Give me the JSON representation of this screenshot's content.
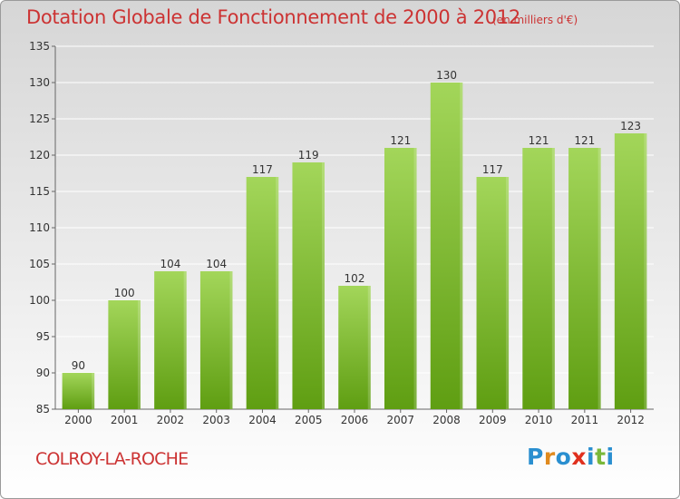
{
  "title": "Dotation Globale de Fonctionnement de 2000 à 2012",
  "subtitle": "(en milliers d'€)",
  "commune": "COLROY-LA-ROCHE",
  "logo": {
    "text": "Proxiti",
    "colors": [
      "#2a8fd0",
      "#e08a1e",
      "#2a8fd0",
      "#e0301e",
      "#2a8fd0",
      "#7ab83a",
      "#2a8fd0"
    ]
  },
  "colors": {
    "accent": "#cc3333",
    "bar_top": "#a3d65a",
    "bar_bottom": "#5f9e12",
    "grid": "#ffffff",
    "axis_text": "#333333"
  },
  "chart_data": {
    "type": "bar",
    "categories": [
      "2000",
      "2001",
      "2002",
      "2003",
      "2004",
      "2005",
      "2006",
      "2007",
      "2008",
      "2009",
      "2010",
      "2011",
      "2012"
    ],
    "values": [
      90,
      100,
      104,
      104,
      117,
      119,
      102,
      121,
      130,
      117,
      121,
      121,
      123
    ],
    "data_labels": [
      "90",
      "100",
      "104",
      "104",
      "117",
      "119",
      "102",
      "121",
      "130",
      "117",
      "121",
      "121",
      "123"
    ],
    "yticks": [
      85,
      90,
      95,
      100,
      105,
      110,
      115,
      120,
      125,
      130,
      135
    ],
    "ylim": [
      85,
      135
    ],
    "grid": true,
    "title": "Dotation Globale de Fonctionnement de 2000 à 2012",
    "xlabel": "",
    "ylabel": ""
  }
}
